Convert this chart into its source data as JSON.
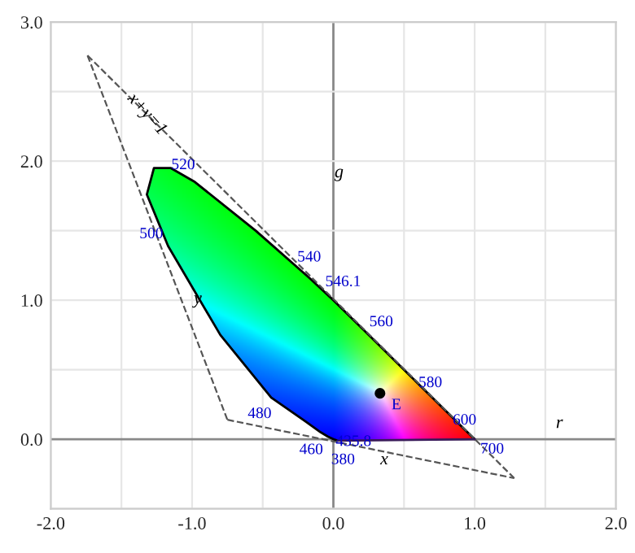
{
  "chart_data": {
    "type": "line",
    "xlim": [
      -2.0,
      2.0
    ],
    "ylim": [
      -0.5,
      3.0
    ],
    "xticks": [
      {
        "value": -2.0,
        "label": "-2.0"
      },
      {
        "value": -1.5,
        "label": null
      },
      {
        "value": -1.0,
        "label": "-1.0"
      },
      {
        "value": -0.5,
        "label": null
      },
      {
        "value": 0.0,
        "label": "0.0"
      },
      {
        "value": 0.5,
        "label": null
      },
      {
        "value": 1.0,
        "label": "1.0"
      },
      {
        "value": 1.5,
        "label": null
      },
      {
        "value": 2.0,
        "label": "2.0"
      }
    ],
    "yticks": [
      {
        "value": -0.5,
        "label": null
      },
      {
        "value": 0.0,
        "label": "0.0"
      },
      {
        "value": 0.5,
        "label": null
      },
      {
        "value": 1.0,
        "label": "1.0"
      },
      {
        "value": 1.5,
        "label": null
      },
      {
        "value": 2.0,
        "label": "2.0"
      },
      {
        "value": 2.5,
        "label": null
      },
      {
        "value": 3.0,
        "label": "3.0"
      }
    ],
    "grid": true,
    "series": [
      {
        "color": "#000000",
        "line_style": "solid",
        "x": [
          0.03,
          0.0,
          -0.04,
          -0.09,
          -0.2,
          -0.44,
          -0.8,
          -1.17,
          -1.32,
          -1.27,
          -1.15,
          -0.98,
          -0.55,
          -0.17,
          0.0,
          0.2,
          0.55,
          0.8,
          0.93,
          1.0
        ],
        "values": [
          -0.01,
          0.0,
          0.02,
          0.05,
          0.13,
          0.3,
          0.75,
          1.39,
          1.76,
          1.95,
          1.95,
          1.85,
          1.5,
          1.16,
          1.0,
          0.8,
          0.45,
          0.2,
          0.07,
          0.0
        ]
      },
      {
        "color": "#3a1a5a",
        "line_style": "solid",
        "x": [
          1.0,
          0.03
        ],
        "values": [
          0.0,
          -0.01
        ]
      },
      {
        "color": "#555555",
        "line_style": "dashed",
        "x": [
          -1.74,
          -0.75
        ],
        "values": [
          2.76,
          0.14
        ]
      },
      {
        "color": "#555555",
        "line_style": "dashed",
        "x": [
          -0.75,
          1.28
        ],
        "values": [
          0.14,
          -0.28
        ]
      },
      {
        "color": "#555555",
        "line_style": "dashed",
        "x": [
          -1.74,
          1.28
        ],
        "values": [
          2.76,
          -0.28
        ]
      },
      {
        "type": "scatter",
        "color": "#000000",
        "marker": "circle",
        "x": [
          0.33
        ],
        "values": [
          0.33
        ]
      }
    ],
    "annotations": [
      {
        "text": "380",
        "x": 0.03,
        "y": -0.01
      },
      {
        "text": "435.8",
        "x": 0.0,
        "y": 0.0
      },
      {
        "text": "460",
        "x": -0.09,
        "y": 0.05
      },
      {
        "text": "480",
        "x": -0.44,
        "y": 0.3
      },
      {
        "text": "500",
        "x": -1.17,
        "y": 1.39
      },
      {
        "text": "520",
        "x": -0.98,
        "y": 1.85
      },
      {
        "text": "540",
        "x": -0.17,
        "y": 1.16
      },
      {
        "text": "546.1",
        "x": 0.0,
        "y": 1.0
      },
      {
        "text": "560",
        "x": 0.2,
        "y": 0.8
      },
      {
        "text": "580",
        "x": 0.55,
        "y": 0.45
      },
      {
        "text": "600",
        "x": 0.8,
        "y": 0.2
      },
      {
        "text": "700",
        "x": 1.0,
        "y": 0.0
      },
      {
        "text": "E",
        "x": 0.33,
        "y": 0.33
      },
      "r",
      "g",
      "x",
      "y",
      "x+y=1"
    ]
  }
}
